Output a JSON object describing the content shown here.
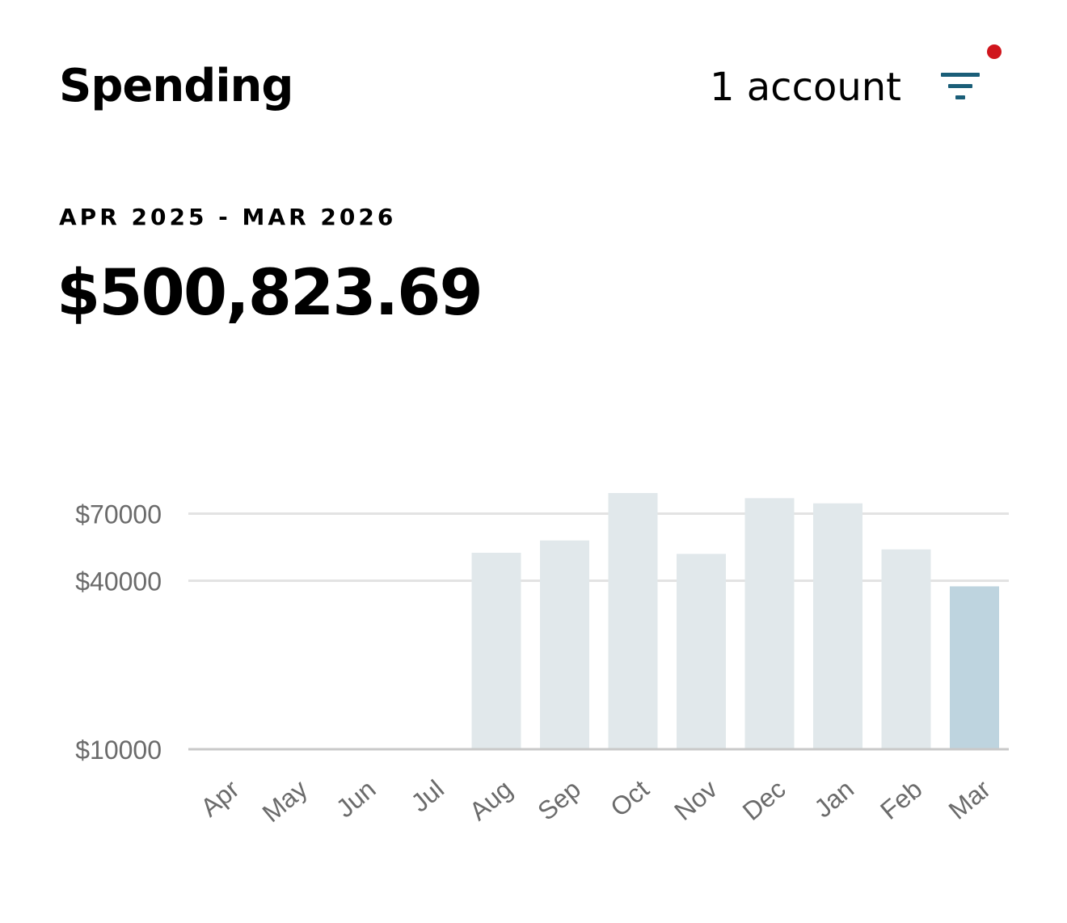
{
  "header": {
    "title": "Spending",
    "accounts_label": "1 account",
    "filter_icon": "filter-icon",
    "notification_color": "#d0151c",
    "icon_color": "#1a5e78"
  },
  "summary": {
    "period": "APR 2025 - MAR 2026",
    "total": "$500,823.69"
  },
  "chart_data": {
    "type": "bar",
    "categories": [
      "Apr",
      "May",
      "Jun",
      "Jul",
      "Aug",
      "Sep",
      "Oct",
      "Nov",
      "Dec",
      "Jan",
      "Feb",
      "Mar"
    ],
    "values": [
      0,
      0,
      0,
      0,
      52500,
      58000,
      76000,
      52000,
      74500,
      73000,
      54000,
      39000
    ],
    "y_ticks": [
      {
        "value": 10000,
        "label": "$10000"
      },
      {
        "value": 40000,
        "label": "$40000"
      },
      {
        "value": 70000,
        "label": "$70000"
      }
    ],
    "selected_category": "Mar",
    "colors": {
      "bar": "#e1e8eb",
      "selected_bar": "#bed4df",
      "grid": "#e3e3e3",
      "baseline": "#c9c9c9"
    },
    "grid": true
  }
}
